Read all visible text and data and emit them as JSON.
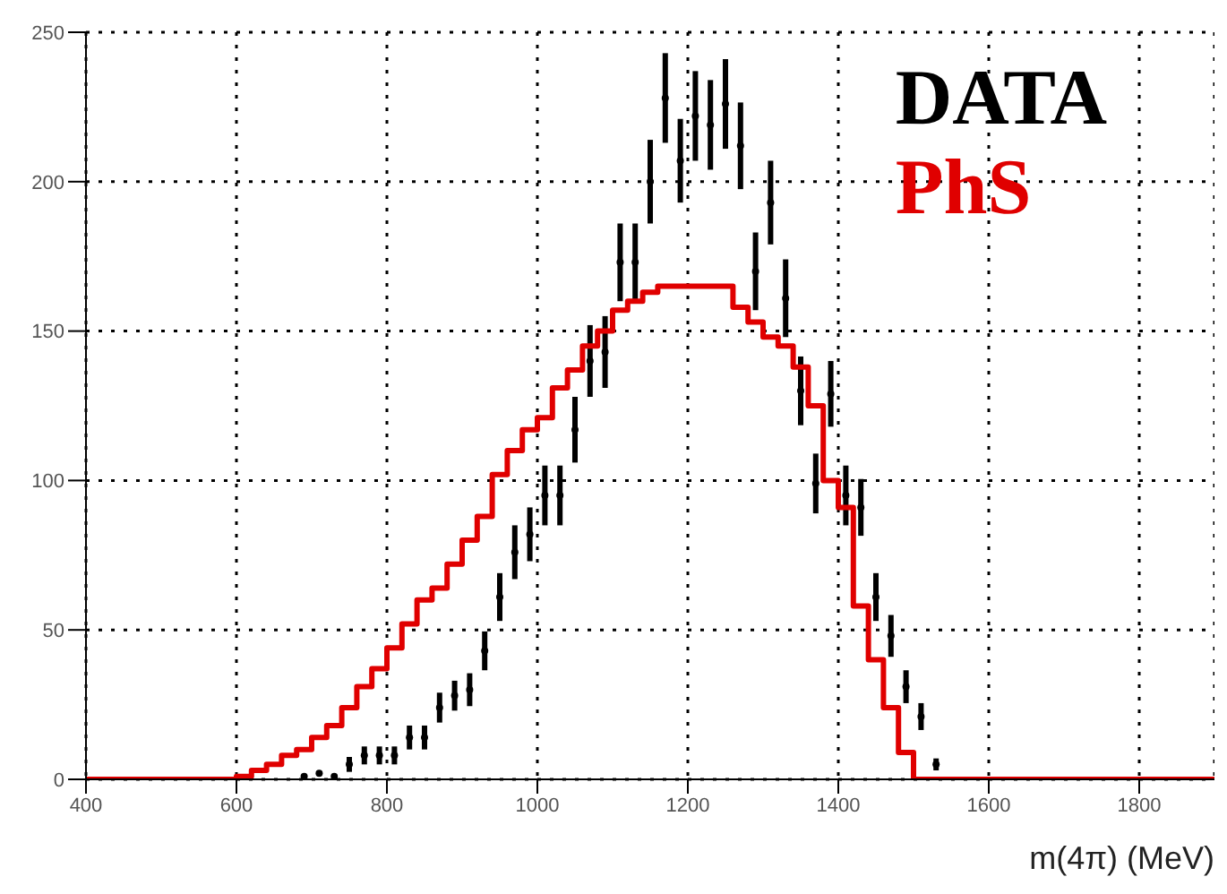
{
  "chart_data": {
    "type": "scatter",
    "xlabel": "m(4π) (MeV)",
    "xlim": [
      400,
      1900
    ],
    "xticks": [
      400,
      600,
      800,
      1000,
      1200,
      1400,
      1600,
      1800
    ],
    "ylim": [
      0,
      250
    ],
    "yticks": [
      0,
      50,
      100,
      150,
      200,
      250
    ],
    "grid": true,
    "legend": "top right",
    "marker": "circle",
    "series": [
      {
        "name": "DATA",
        "color": "#000000",
        "x": [
          690,
          710,
          730,
          750,
          770,
          790,
          810,
          830,
          850,
          870,
          890,
          910,
          930,
          950,
          970,
          990,
          1010,
          1030,
          1050,
          1070,
          1090,
          1110,
          1130,
          1150,
          1170,
          1190,
          1210,
          1230,
          1250,
          1270,
          1290,
          1310,
          1330,
          1350,
          1370,
          1390,
          1410,
          1430,
          1450,
          1470,
          1490,
          1510,
          1530
        ],
        "values": [
          1,
          2,
          1,
          5,
          8,
          8,
          8,
          14,
          14,
          24,
          28,
          30,
          43,
          61,
          76,
          82,
          95,
          95,
          117,
          140,
          143,
          173,
          173,
          200,
          228,
          207,
          222,
          219,
          226,
          212,
          170,
          193,
          161,
          130,
          99,
          129,
          95,
          91,
          61,
          48,
          31,
          21,
          5
        ],
        "errors": [
          null,
          null,
          null,
          2.5,
          3,
          3,
          3,
          4,
          4,
          5,
          5,
          5.5,
          6.5,
          8,
          9,
          9,
          10,
          10,
          11,
          12,
          12,
          13,
          13,
          14,
          15,
          14,
          15,
          15,
          15,
          14.5,
          13,
          14,
          13,
          11.5,
          10,
          11,
          10,
          9.5,
          8,
          7,
          5.5,
          4.5,
          2
        ]
      },
      {
        "name": "PhS",
        "type": "histogram",
        "color": "#e00000",
        "bins": [
          400,
          600,
          620,
          640,
          660,
          680,
          700,
          720,
          740,
          760,
          780,
          800,
          820,
          840,
          860,
          880,
          900,
          920,
          940,
          960,
          980,
          1000,
          1020,
          1040,
          1060,
          1080,
          1100,
          1120,
          1140,
          1160,
          1180,
          1200,
          1220,
          1240,
          1260,
          1280,
          1300,
          1320,
          1340,
          1360,
          1380,
          1400,
          1420,
          1440,
          1460,
          1480,
          1500,
          1900
        ],
        "values": [
          0,
          1,
          3,
          5,
          8,
          10,
          14,
          18,
          24,
          31,
          37,
          44,
          52,
          60,
          64,
          72,
          80,
          88,
          102,
          110,
          117,
          121,
          131,
          137,
          145,
          150,
          157,
          160,
          163,
          165,
          165,
          165,
          165,
          165,
          158,
          153,
          148,
          145,
          138,
          125,
          100,
          91,
          58,
          40,
          24,
          9,
          0
        ]
      }
    ]
  }
}
